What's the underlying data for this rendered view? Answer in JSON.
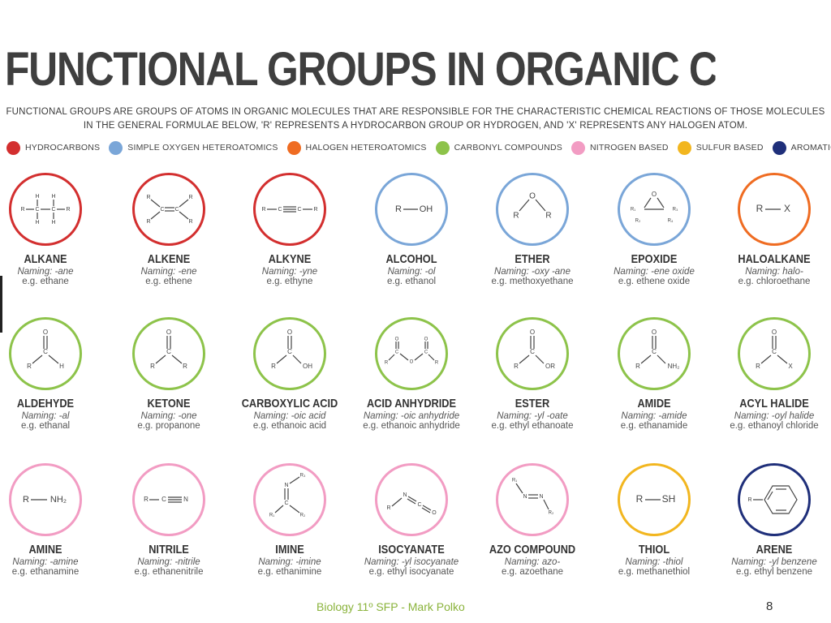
{
  "title": "FUNCTIONAL GROUPS IN ORGANIC CHEMISTRY",
  "intro": [
    "FUNCTIONAL GROUPS ARE GROUPS OF ATOMS IN ORGANIC MOLECULES THAT ARE RESPONSIBLE FOR THE CHARACTERISTIC CHEMICAL REACTIONS OF THOSE MOLECULES",
    "IN THE GENERAL FORMULAE BELOW, 'R' REPRESENTS A HYDROCARBON GROUP OR HYDROGEN, AND 'X' REPRESENTS ANY HALOGEN ATOM."
  ],
  "legend": [
    {
      "label": "HYDROCARBONS",
      "color": "#d32f2f"
    },
    {
      "label": "SIMPLE OXYGEN HETEROATOMICS",
      "color": "#7aa6d8"
    },
    {
      "label": "HALOGEN HETEROATOMICS",
      "color": "#ef6c22"
    },
    {
      "label": "CARBONYL COMPOUNDS",
      "color": "#8dc34a"
    },
    {
      "label": "NITROGEN BASED",
      "color": "#f29cc3"
    },
    {
      "label": "SULFUR BASED",
      "color": "#f2b61f"
    },
    {
      "label": "AROMATIC",
      "color": "#1f2f7a"
    }
  ],
  "groups": [
    {
      "id": "alkane",
      "name": "ALKANE",
      "naming": "Naming: -ane",
      "example": "e.g. ethane",
      "color": "#d32f2f"
    },
    {
      "id": "alkene",
      "name": "ALKENE",
      "naming": "Naming: -ene",
      "example": "e.g. ethene",
      "color": "#d32f2f"
    },
    {
      "id": "alkyne",
      "name": "ALKYNE",
      "naming": "Naming: -yne",
      "example": "e.g. ethyne",
      "color": "#d32f2f"
    },
    {
      "id": "alcohol",
      "name": "ALCOHOL",
      "naming": "Naming: -ol",
      "example": "e.g. ethanol",
      "color": "#7aa6d8"
    },
    {
      "id": "ether",
      "name": "ETHER",
      "naming": "Naming: -oxy -ane",
      "example": "e.g. methoxyethane",
      "color": "#7aa6d8"
    },
    {
      "id": "epoxide",
      "name": "EPOXIDE",
      "naming": "Naming: -ene oxide",
      "example": "e.g. ethene oxide",
      "color": "#7aa6d8"
    },
    {
      "id": "haloalkane",
      "name": "HALOALKANE",
      "naming": "Naming: halo-",
      "example": "e.g. chloroethane",
      "color": "#ef6c22"
    },
    {
      "id": "aldehyde",
      "name": "ALDEHYDE",
      "naming": "Naming: -al",
      "example": "e.g. ethanal",
      "color": "#8dc34a"
    },
    {
      "id": "ketone",
      "name": "KETONE",
      "naming": "Naming: -one",
      "example": "e.g. propanone",
      "color": "#8dc34a"
    },
    {
      "id": "carboxylic-acid",
      "name": "CARBOXYLIC ACID",
      "naming": "Naming: -oic acid",
      "example": "e.g. ethanoic acid",
      "color": "#8dc34a"
    },
    {
      "id": "acid-anhydride",
      "name": "ACID ANHYDRIDE",
      "naming": "Naming: -oic anhydride",
      "example": "e.g. ethanoic anhydride",
      "color": "#8dc34a"
    },
    {
      "id": "ester",
      "name": "ESTER",
      "naming": "Naming: -yl -oate",
      "example": "e.g. ethyl ethanoate",
      "color": "#8dc34a"
    },
    {
      "id": "amide",
      "name": "AMIDE",
      "naming": "Naming: -amide",
      "example": "e.g. ethanamide",
      "color": "#8dc34a"
    },
    {
      "id": "acyl-halide",
      "name": "ACYL HALIDE",
      "naming": "Naming: -oyl halide",
      "example": "e.g. ethanoyl chloride",
      "color": "#8dc34a"
    },
    {
      "id": "amine",
      "name": "AMINE",
      "naming": "Naming: -amine",
      "example": "e.g. ethanamine",
      "color": "#f29cc3"
    },
    {
      "id": "nitrile",
      "name": "NITRILE",
      "naming": "Naming: -nitrile",
      "example": "e.g. ethanenitrile",
      "color": "#f29cc3"
    },
    {
      "id": "imine",
      "name": "IMINE",
      "naming": "Naming: -imine",
      "example": "e.g. ethanimine",
      "color": "#f29cc3"
    },
    {
      "id": "isocyanate",
      "name": "ISOCYANATE",
      "naming": "Naming: -yl isocyanate",
      "example": "e.g. ethyl isocyanate",
      "color": "#f29cc3"
    },
    {
      "id": "azo-compound",
      "name": "AZO COMPOUND",
      "naming": "Naming: azo-",
      "example": "e.g. azoethane",
      "color": "#f29cc3"
    },
    {
      "id": "thiol",
      "name": "THIOL",
      "naming": "Naming: -thiol",
      "example": "e.g. methanethiol",
      "color": "#f2b61f"
    },
    {
      "id": "arene",
      "name": "ARENE",
      "naming": "Naming: -yl benzene",
      "example": "e.g. ethyl benzene",
      "color": "#1f2f7a"
    }
  ],
  "footer": "Biology 11º SFP - Mark Polko",
  "page_number": "8"
}
